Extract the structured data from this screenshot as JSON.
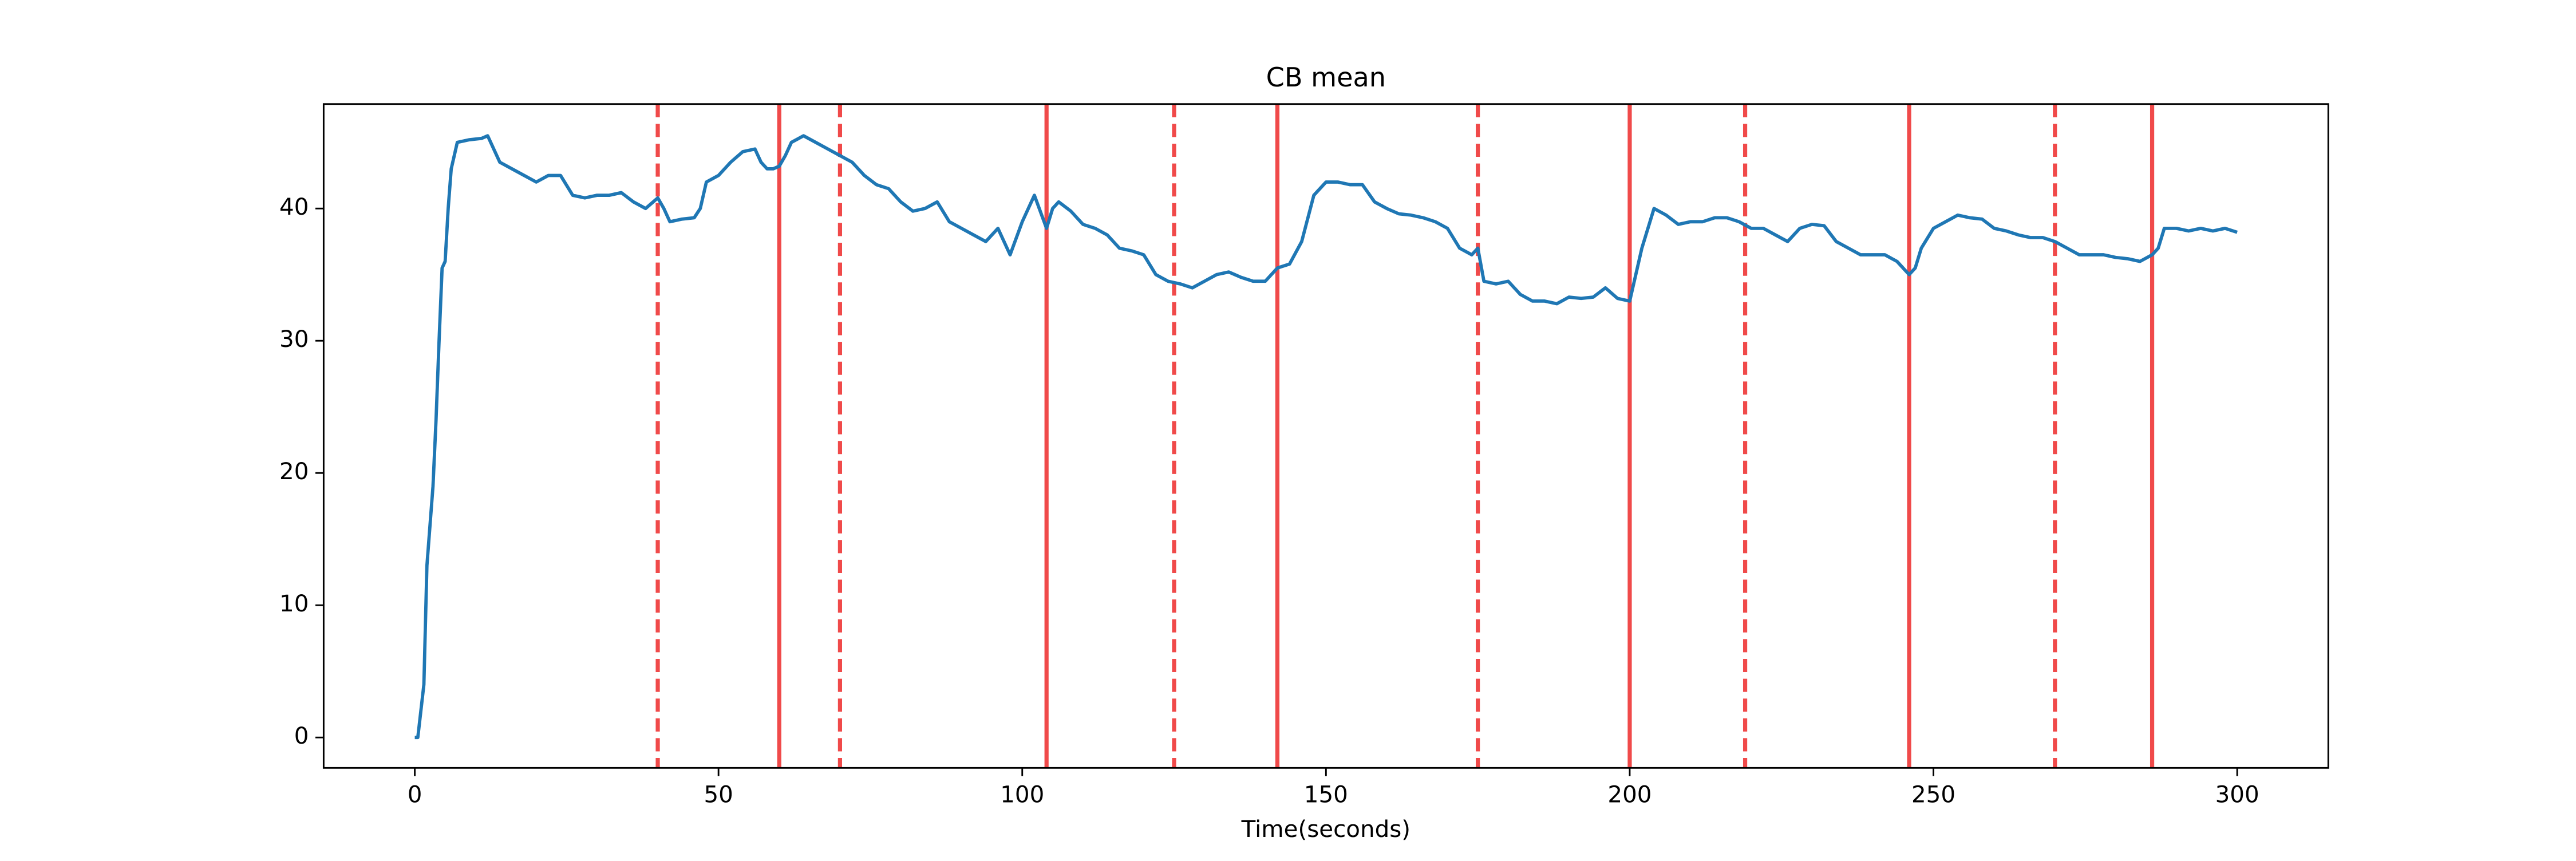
{
  "chart_data": {
    "type": "line",
    "title": "CB mean",
    "x_label": "Time(seconds)",
    "x": [
      0,
      0.5,
      1,
      1.5,
      2,
      2.5,
      3,
      3.5,
      4,
      4.5,
      5,
      5.5,
      6,
      7,
      9,
      11,
      12,
      13,
      14,
      16,
      18,
      20,
      22,
      24,
      26,
      28,
      30,
      32,
      34,
      36,
      38,
      40,
      41,
      42,
      44,
      46,
      47,
      48,
      50,
      52,
      54,
      56,
      57,
      58,
      59,
      60,
      61,
      62,
      64,
      66,
      68,
      70,
      72,
      74,
      76,
      78,
      80,
      82,
      84,
      86,
      88,
      90,
      92,
      94,
      96,
      98,
      100,
      102,
      104,
      105,
      106,
      108,
      110,
      112,
      114,
      116,
      118,
      120,
      122,
      124,
      126,
      128,
      130,
      132,
      134,
      136,
      138,
      140,
      142,
      144,
      146,
      148,
      150,
      152,
      154,
      156,
      158,
      160,
      162,
      164,
      166,
      168,
      170,
      172,
      174,
      175,
      176,
      178,
      180,
      182,
      184,
      186,
      188,
      190,
      192,
      194,
      196,
      198,
      200,
      201,
      202,
      204,
      206,
      208,
      210,
      212,
      214,
      216,
      218,
      220,
      222,
      224,
      226,
      228,
      230,
      232,
      234,
      236,
      238,
      240,
      242,
      244,
      246,
      247,
      248,
      250,
      252,
      254,
      256,
      258,
      260,
      262,
      264,
      266,
      268,
      270,
      272,
      274,
      276,
      278,
      280,
      282,
      284,
      286,
      287,
      288,
      290,
      292,
      294,
      296,
      298,
      300
    ],
    "series": [
      {
        "color": "#1f77b4",
        "values": [
          0,
          0,
          2,
          4,
          13,
          16,
          19,
          24,
          30,
          35.5,
          36,
          40,
          43,
          45,
          45.2,
          45.3,
          45.5,
          44.5,
          43.5,
          43,
          42.5,
          42,
          42.5,
          42.5,
          41,
          40.8,
          41,
          41,
          41.2,
          40.5,
          40,
          40.8,
          40,
          39,
          39.2,
          39.3,
          40,
          42,
          42.5,
          43.5,
          44.3,
          44.5,
          43.5,
          43,
          43,
          43.2,
          44,
          45,
          45.5,
          45,
          44.5,
          44,
          43.5,
          42.5,
          41.8,
          41.5,
          40.5,
          39.8,
          40,
          40.5,
          39,
          38.5,
          38,
          37.5,
          38.5,
          36.5,
          39,
          41,
          38.5,
          40,
          40.5,
          39.8,
          38.8,
          38.5,
          38,
          37,
          36.8,
          36.5,
          35,
          34.5,
          34.3,
          34,
          34.5,
          35,
          35.2,
          34.8,
          34.5,
          34.5,
          35.5,
          35.8,
          37.5,
          41,
          42,
          42,
          41.8,
          41.8,
          40.5,
          40,
          39.6,
          39.5,
          39.3,
          39,
          38.5,
          37,
          36.5,
          37,
          34.5,
          34.3,
          34.5,
          33.5,
          33,
          33,
          32.8,
          33.3,
          33.2,
          33.3,
          34,
          33.2,
          33,
          35,
          37,
          40,
          39.5,
          38.8,
          39,
          39,
          39.3,
          39.3,
          39,
          38.5,
          38.5,
          38,
          37.5,
          38.5,
          38.8,
          38.7,
          37.5,
          37,
          36.5,
          36.5,
          36.5,
          36,
          35,
          35.5,
          37,
          38.5,
          39,
          39.5,
          39.3,
          39.2,
          38.5,
          38.3,
          38,
          37.8,
          37.8,
          37.5,
          37,
          36.5,
          36.5,
          36.5,
          36.3,
          36.2,
          36,
          36.5,
          37,
          38.5,
          38.5,
          38.3,
          38.5,
          38.3,
          38.5,
          38.2
        ]
      }
    ],
    "vline_color": "#f04a4a",
    "dashed_lines": [
      40,
      70,
      125,
      175,
      219,
      270
    ],
    "solid_lines": [
      60,
      104,
      142,
      200,
      246,
      286
    ],
    "xlim": [
      -15,
      315
    ],
    "ylim": [
      -2.3,
      47.9
    ],
    "xticks": [
      0,
      50,
      100,
      150,
      200,
      250,
      300
    ],
    "yticks": [
      0,
      10,
      20,
      30,
      40
    ]
  }
}
